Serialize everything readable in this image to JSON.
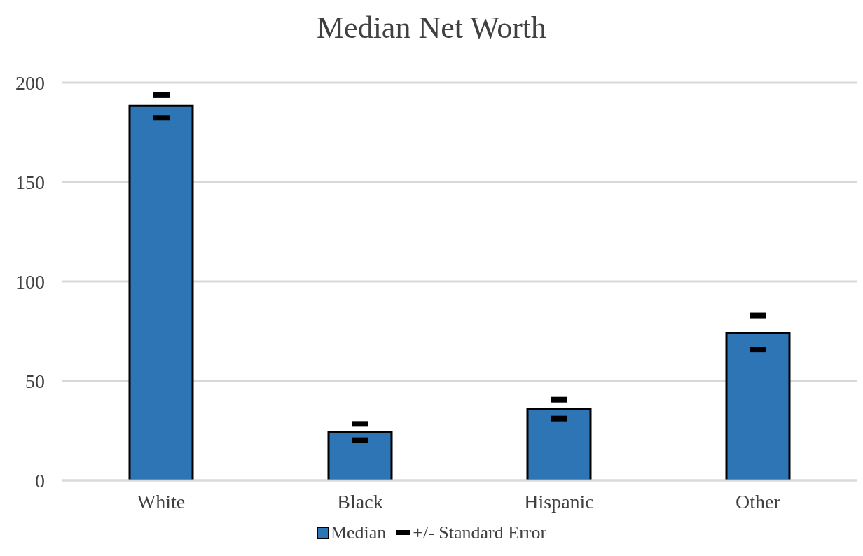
{
  "chart_data": {
    "type": "bar",
    "title": "Median Net Worth",
    "categories": [
      "White",
      "Black",
      "Hispanic",
      "Other"
    ],
    "series": [
      {
        "name": "Median",
        "color": "#2e75b6",
        "values": [
          188.3,
          24.3,
          35.8,
          74.1
        ]
      },
      {
        "name": "+/- Standard Error",
        "type": "scatter",
        "color": "#000000",
        "x": [
          "White",
          "White",
          "Black",
          "Black",
          "Hispanic",
          "Hispanic",
          "Other",
          "Other"
        ],
        "values": [
          193.7,
          182.3,
          28.4,
          20.2,
          40.6,
          31.1,
          82.9,
          65.8
        ]
      }
    ],
    "ylim": [
      0,
      200
    ],
    "yticks": [
      0,
      50,
      100,
      150,
      200
    ],
    "grid": "y",
    "legend": "bottom"
  }
}
